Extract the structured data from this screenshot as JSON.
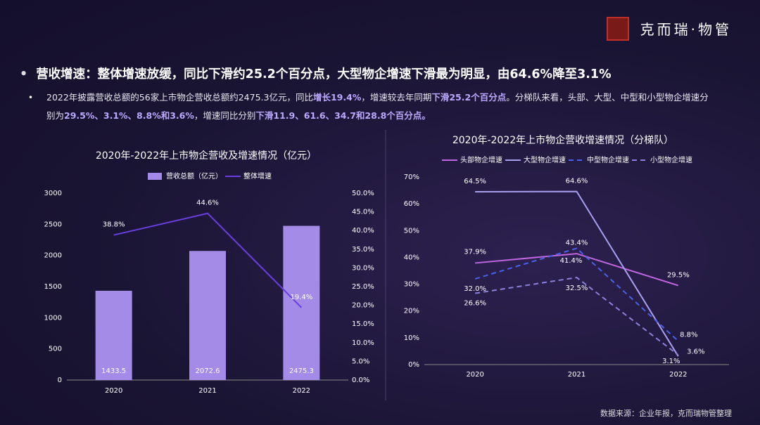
{
  "logo": "克而瑞·物管",
  "headline": "营收增速：整体增速放缓，同比下滑约25.2个百分点，大型物企增速下滑最为明显，由64.6%降至3.1%",
  "bullet": [
    {
      "text": "2022年披露营收总额的56家上市物企营收总额约2475.3亿元，同比",
      "highlight": false
    },
    {
      "text": "增长19.4%",
      "highlight": true
    },
    {
      "text": "，增速较去年同期",
      "highlight": false
    },
    {
      "text": "下滑25.2个百分点",
      "highlight": true
    },
    {
      "text": "。分梯队来看，头部、大型、中型和小型物企增速分别为",
      "highlight": false
    },
    {
      "text": "29.5%、3.1%、8.8%和3.6%",
      "highlight": true
    },
    {
      "text": "，增速同比分别",
      "highlight": false
    },
    {
      "text": "下滑11.9、61.6、34.7和28.8个百分点。",
      "highlight": true
    }
  ],
  "source": "数据来源：企业年报，克而瑞物管整理",
  "chart_data": [
    {
      "type": "bar",
      "title": "2020年-2022年上市物企营收及增速情况（亿元）",
      "categories": [
        "2020",
        "2021",
        "2022"
      ],
      "series": [
        {
          "name": "营收总额（亿元）",
          "color": "#a48be8",
          "values": [
            1433.5,
            2072.6,
            2475.3
          ]
        },
        {
          "name": "整体增速",
          "color": "#6a3fe0",
          "type": "line",
          "axis": "y2",
          "values": [
            38.8,
            44.6,
            19.4
          ],
          "value_labels": [
            "38.8%",
            "44.6%",
            "19.4%"
          ]
        }
      ],
      "ylim": [
        0,
        3000
      ],
      "yticks": [
        0,
        500,
        1000,
        1500,
        2000,
        2500,
        3000
      ],
      "y2lim": [
        0,
        50
      ],
      "y2ticks": [
        {
          "value": 0,
          "label": "0.0%"
        },
        {
          "value": 5,
          "label": "5.0%"
        },
        {
          "value": 10,
          "label": "10.0%"
        },
        {
          "value": 15,
          "label": "15.0%"
        },
        {
          "value": 20,
          "label": "20.0%"
        },
        {
          "value": 25,
          "label": "25.0%"
        },
        {
          "value": 30,
          "label": "30.0%"
        },
        {
          "value": 35,
          "label": "35.0%"
        },
        {
          "value": 40,
          "label": "40.0%"
        },
        {
          "value": 45,
          "label": "45.0%"
        },
        {
          "value": 50,
          "label": "50.0%"
        }
      ],
      "legend": "top"
    },
    {
      "type": "line",
      "title": "2020年-2022年上市物企营收增速情况（分梯队）",
      "categories": [
        "2020",
        "2021",
        "2022"
      ],
      "series": [
        {
          "name": "头部物企增速",
          "color": "#c066e0",
          "dashed": false,
          "values": [
            37.9,
            41.4,
            29.5
          ],
          "value_labels": [
            "37.9%",
            "41.4%",
            "29.5%"
          ]
        },
        {
          "name": "大型物企增速",
          "color": "#a99ff0",
          "dashed": false,
          "values": [
            64.5,
            64.6,
            3.1
          ],
          "value_labels": [
            "64.5%",
            "64.6%",
            "3.1%"
          ]
        },
        {
          "name": "中型物企增速",
          "color": "#4a62e8",
          "dashed": true,
          "values": [
            32.0,
            43.4,
            8.8
          ],
          "value_labels": [
            "32.0%",
            "43.4%",
            "8.8%"
          ]
        },
        {
          "name": "小型物企增速",
          "color": "#8c80dc",
          "dashed": true,
          "values": [
            26.6,
            32.5,
            3.6
          ],
          "value_labels": [
            "26.6%",
            "32.5%",
            "3.6%"
          ]
        }
      ],
      "ylim": [
        0,
        70
      ],
      "yticks": [
        {
          "value": 0,
          "label": "0%"
        },
        {
          "value": 10,
          "label": "10%"
        },
        {
          "value": 20,
          "label": "20%"
        },
        {
          "value": 30,
          "label": "30%"
        },
        {
          "value": 40,
          "label": "40%"
        },
        {
          "value": 50,
          "label": "50%"
        },
        {
          "value": 60,
          "label": "60%"
        },
        {
          "value": 70,
          "label": "70%"
        }
      ],
      "legend": "top"
    }
  ]
}
